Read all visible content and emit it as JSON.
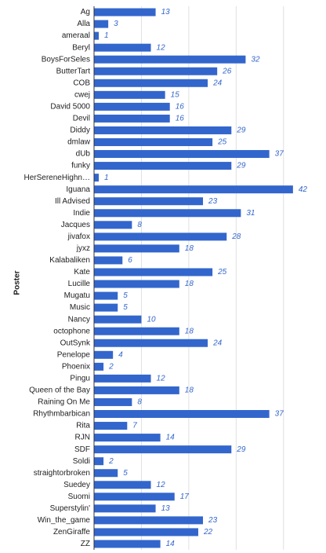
{
  "chart_data": {
    "type": "hbar",
    "y_label": "Poster",
    "categories": [
      "Ag",
      "Alla",
      "ameraal",
      "Beryl",
      "BoysForSeles",
      "ButterTart",
      "COB",
      "cwej",
      "David 5000",
      "Devil",
      "Diddy",
      "dmlaw",
      "dUb",
      "funky",
      "HerSereneHighn…",
      "Iguana",
      "Ill Advised",
      "Indie",
      "Jacques",
      "jivafox",
      "jyxz",
      "Kalabaliken",
      "Kate",
      "Lucille",
      "Mugatu",
      "Music",
      "Nancy",
      "octophone",
      "OutSynk",
      "Penelope",
      "Phoenix",
      "Pingu",
      "Queen of the Bay",
      "Raining On Me",
      "Rhythmbarbican",
      "Rita",
      "RJN",
      "SDF",
      "Soldi",
      "straightorbroken",
      "Suedey",
      "Suomi",
      "Superstylin'",
      "Win_the_game",
      "ZenGiraffe",
      "ZZ"
    ],
    "values": [
      13,
      3,
      1,
      12,
      32,
      26,
      24,
      15,
      16,
      16,
      29,
      25,
      37,
      29,
      1,
      42,
      23,
      31,
      8,
      28,
      18,
      6,
      25,
      18,
      5,
      5,
      10,
      18,
      24,
      4,
      2,
      12,
      18,
      8,
      37,
      7,
      14,
      29,
      2,
      5,
      12,
      17,
      13,
      23,
      22,
      14
    ],
    "color": "#3366cc",
    "xlim": [
      0,
      45
    ],
    "xticks": [
      0,
      10,
      20,
      30,
      40
    ],
    "xtick_labels": false,
    "grid": true,
    "value_labels_shown": true
  }
}
